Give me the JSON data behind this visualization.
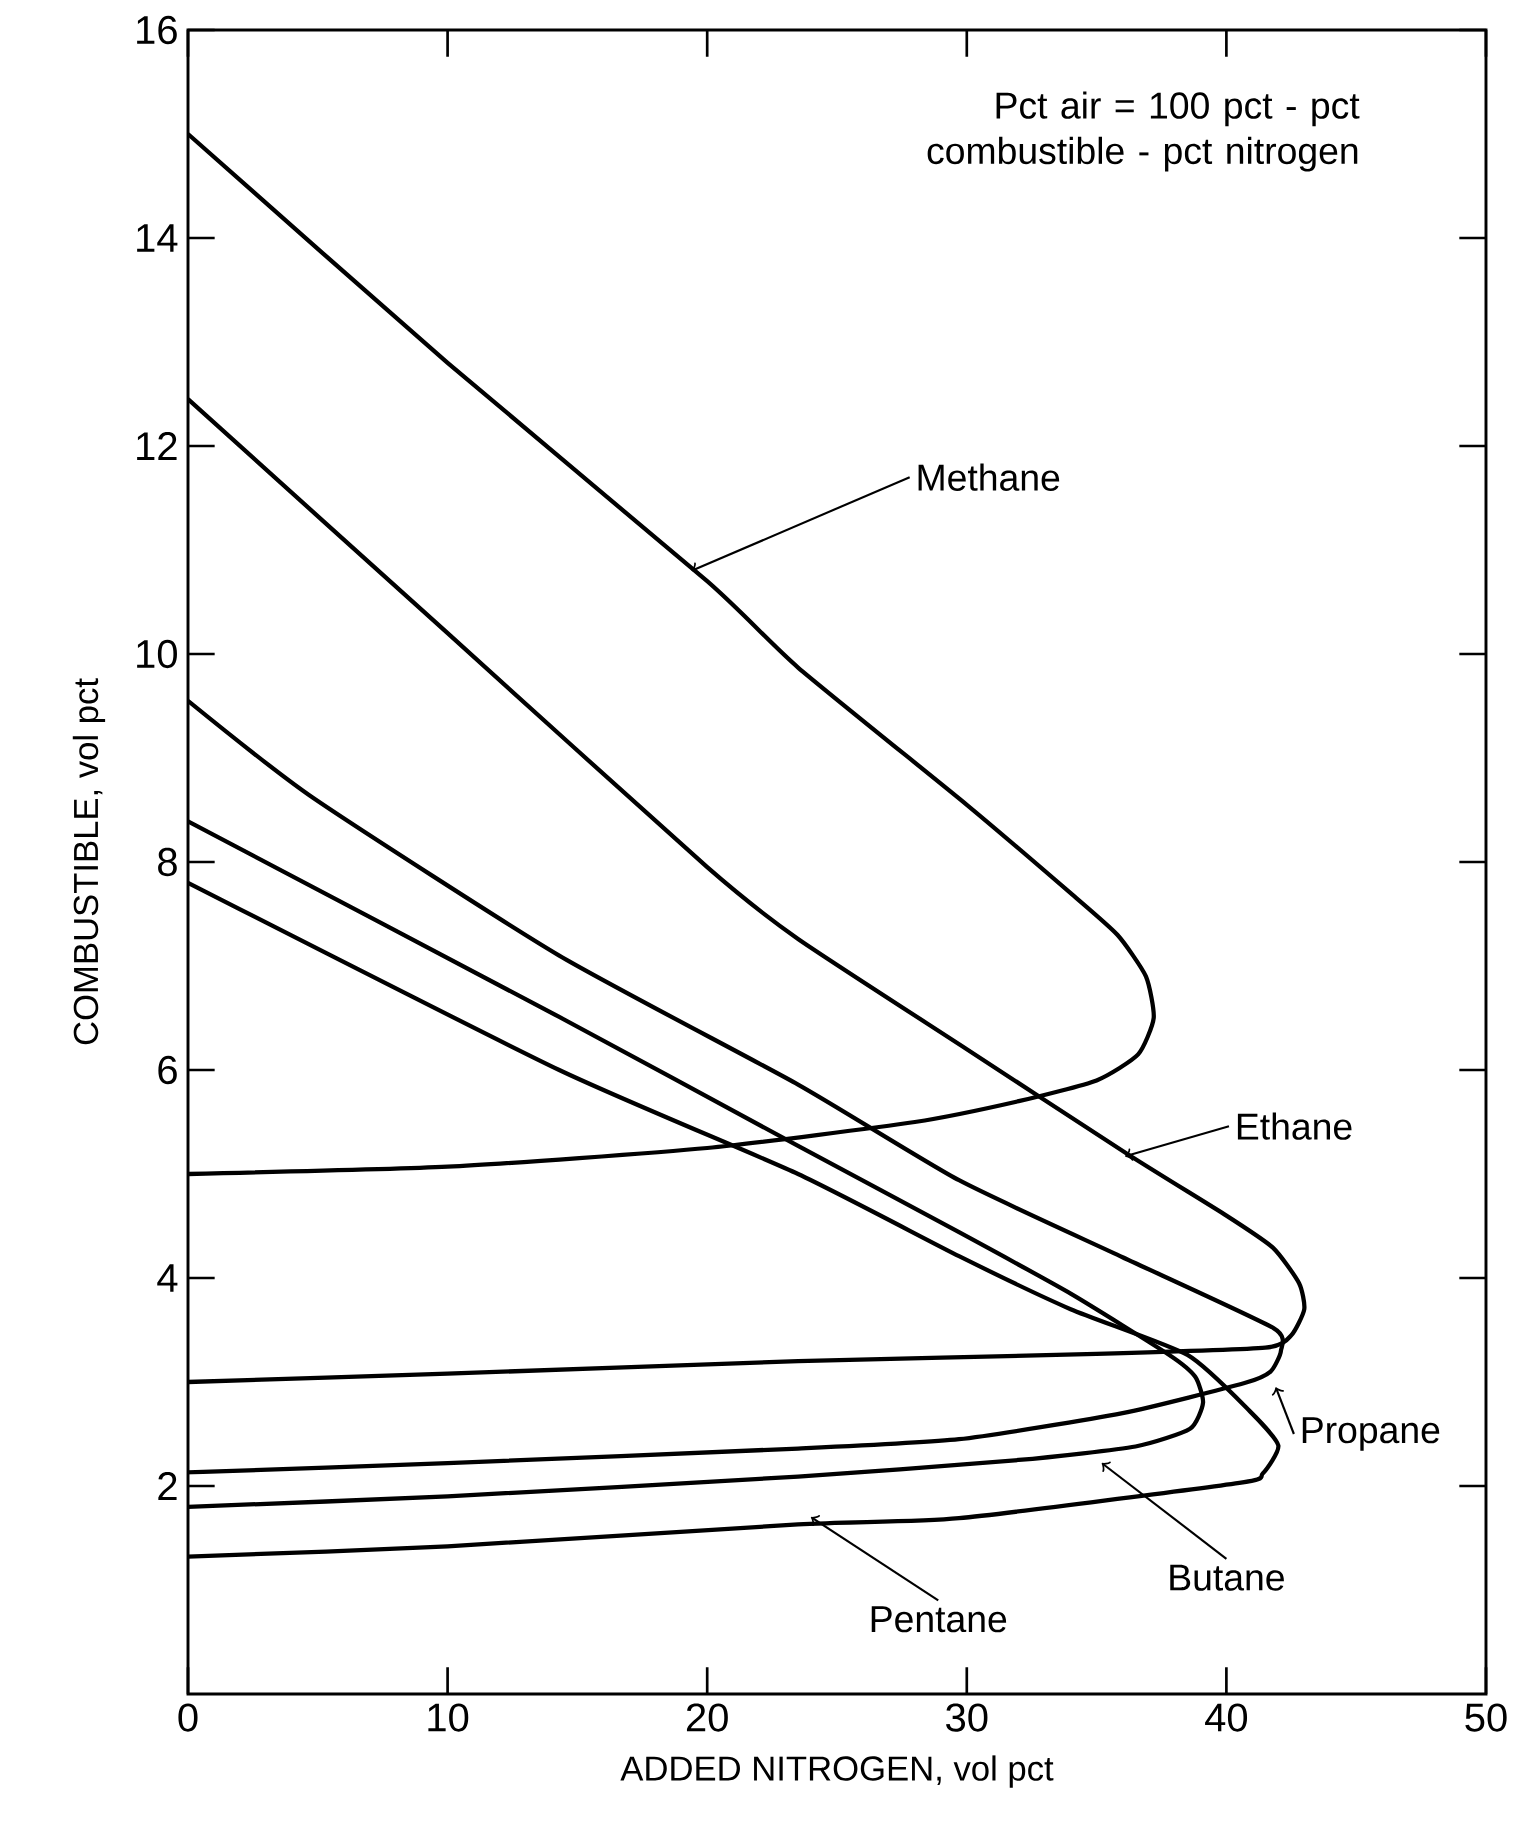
{
  "chart_data": {
    "type": "line",
    "xlabel": "ADDED NITROGEN, vol pct",
    "ylabel": "COMBUSTIBLE, vol pct",
    "annotations": [
      "Pct air = 100 pct - pct combustible - pct nitrogen"
    ],
    "xlim": [
      0,
      50
    ],
    "ylim": [
      0,
      16
    ],
    "xticks": [
      0,
      10,
      20,
      30,
      40,
      50
    ],
    "yticks": [
      2,
      4,
      6,
      8,
      10,
      12,
      14,
      16
    ],
    "grid": false,
    "legend": "bottom right",
    "series": [
      {
        "name": "Methane",
        "color": "#000000",
        "x": [
          0,
          10,
          20,
          23.5,
          30,
          34,
          35.8,
          36.9,
          37.2,
          36.6,
          35,
          32,
          28,
          20,
          10,
          0
        ],
        "values": [
          15,
          12.8,
          10.7,
          9.87,
          8.55,
          7.7,
          7.3,
          6.9,
          6.5,
          6.15,
          5.9,
          5.7,
          5.5,
          5.25,
          5.07,
          5.0
        ]
      },
      {
        "name": "Ethane",
        "color": "#000000",
        "x": [
          0,
          10,
          20,
          23.5,
          30,
          36.2,
          40,
          41.8,
          42.8,
          43,
          42.5,
          41.5,
          35,
          23.5,
          10,
          0
        ],
        "values": [
          12.45,
          10.2,
          7.95,
          7.26,
          6.2,
          5.19,
          4.6,
          4.29,
          3.95,
          3.7,
          3.45,
          3.33,
          3.27,
          3.2,
          3.08,
          3.0
        ]
      },
      {
        "name": "Propane",
        "color": "#000000",
        "x": [
          0,
          4.8,
          14.3,
          23.5,
          29.7,
          36,
          41.8,
          42.1,
          41.7,
          40.7,
          36,
          29.7,
          23.5,
          10,
          0
        ],
        "values": [
          9.55,
          8.62,
          7.1,
          5.86,
          4.94,
          4.2,
          3.52,
          3.3,
          3.1,
          2.99,
          2.7,
          2.45,
          2.36,
          2.22,
          2.13
        ]
      },
      {
        "name": "Butane",
        "color": "#000000",
        "x": [
          0,
          14.3,
          23.5,
          29.7,
          34,
          37.8,
          38.8,
          39.1,
          38.6,
          36.5,
          32,
          23.5,
          10,
          0
        ],
        "values": [
          8.39,
          6.51,
          5.27,
          4.44,
          3.85,
          3.26,
          3.05,
          2.8,
          2.55,
          2.38,
          2.25,
          2.09,
          1.9,
          1.8
        ]
      },
      {
        "name": "Pentane",
        "color": "#000000",
        "x": [
          0,
          14.3,
          23.5,
          29.7,
          34,
          38.5,
          40.9,
          42,
          41.4,
          40.5,
          29.7,
          23.5,
          10,
          0
        ],
        "values": [
          7.8,
          6.0,
          5.0,
          4.21,
          3.7,
          3.26,
          2.72,
          2.39,
          2.12,
          2.03,
          1.69,
          1.63,
          1.42,
          1.32
        ]
      }
    ]
  }
}
